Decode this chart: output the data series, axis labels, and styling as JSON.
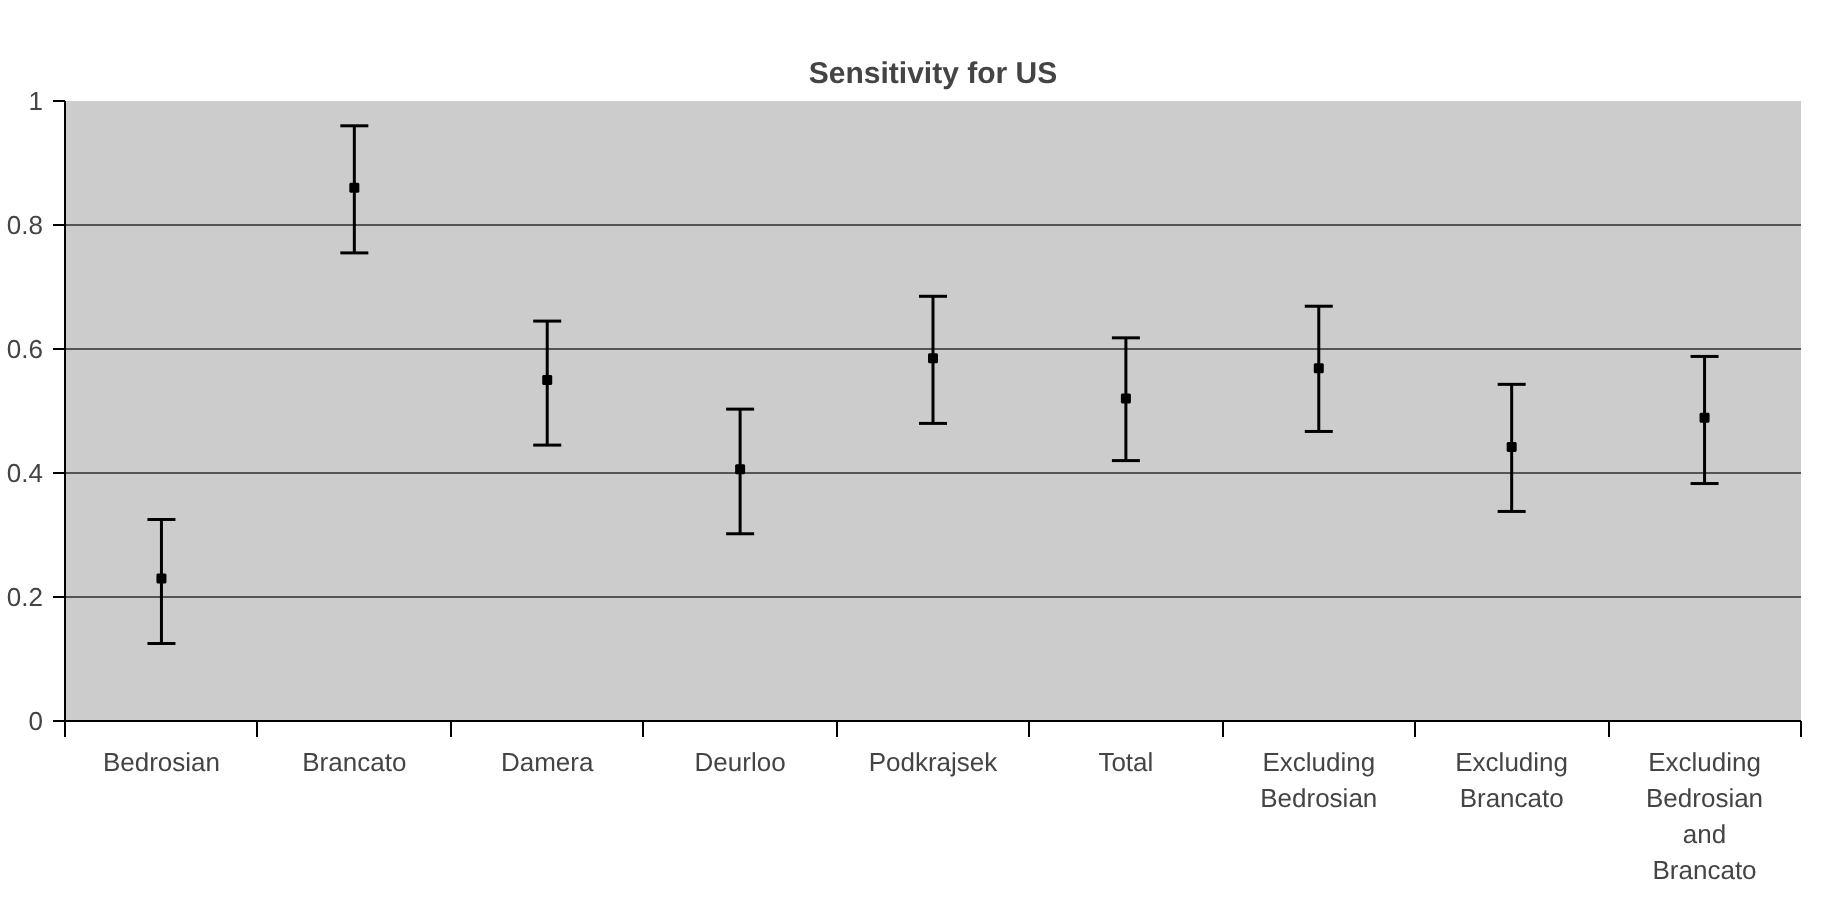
{
  "chart_data": {
    "type": "scatter",
    "title": "Sensitivity for US",
    "categories": [
      "Bedrosian",
      "Brancato",
      "Damera",
      "Deurloo",
      "Podkrajsek",
      "Total",
      "Excluding Bedrosian",
      "Excluding Brancato",
      "Excluding Bedrosian and Brancato"
    ],
    "values": [
      0.23,
      0.86,
      0.55,
      0.406,
      0.585,
      0.52,
      0.569,
      0.442,
      0.489
    ],
    "errors": [
      [
        0.125,
        0.325
      ],
      [
        0.755,
        0.96
      ],
      [
        0.445,
        0.645
      ],
      [
        0.302,
        0.503
      ],
      [
        0.48,
        0.685
      ],
      [
        0.42,
        0.618
      ],
      [
        0.467,
        0.669
      ],
      [
        0.338,
        0.543
      ],
      [
        0.383,
        0.588
      ]
    ],
    "color": "#000000",
    "marker": "square",
    "ylim": [
      0,
      1
    ],
    "yticks": [
      0,
      0.2,
      0.4,
      0.6,
      0.8,
      1
    ],
    "grid": "y"
  }
}
